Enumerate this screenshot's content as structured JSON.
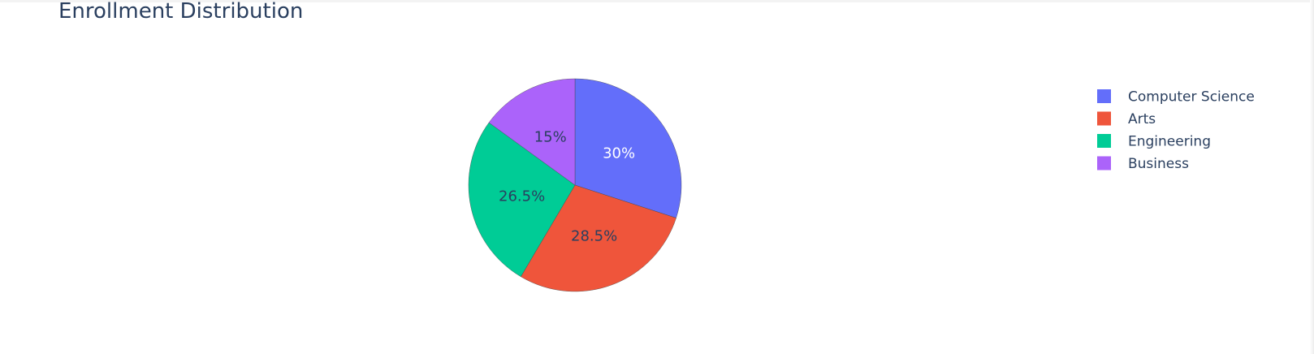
{
  "chart_data": {
    "type": "pie",
    "title": "Enrollment Distribution",
    "categories": [
      "Computer Science",
      "Arts",
      "Engineering",
      "Business"
    ],
    "values": [
      30,
      28.5,
      26.5,
      15
    ],
    "value_labels": [
      "30%",
      "28.5%",
      "26.5%",
      "15%"
    ],
    "colors": [
      "#636efa",
      "#ef553b",
      "#00cc96",
      "#ab63fa"
    ],
    "label_colors": [
      "#ffffff",
      "#2a3f5f",
      "#2a3f5f",
      "#2a3f5f"
    ],
    "direction": "clockwise",
    "start_angle_deg": 90,
    "sort": "descending",
    "legend": {
      "placement": "right",
      "order": [
        "Computer Science",
        "Arts",
        "Engineering",
        "Business"
      ]
    }
  }
}
